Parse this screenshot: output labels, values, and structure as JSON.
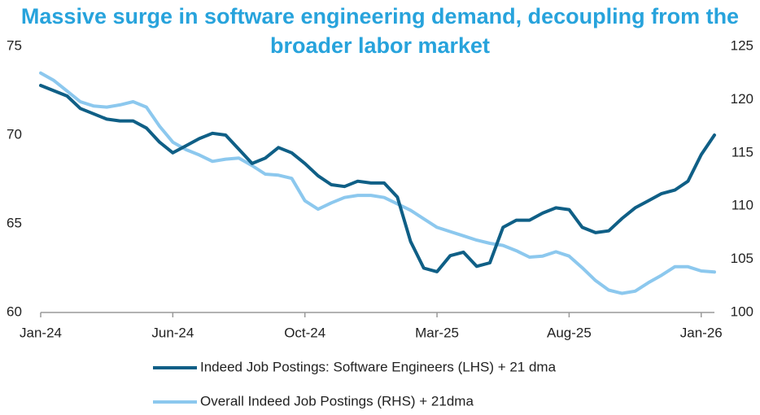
{
  "chart_data": {
    "type": "line",
    "title": "Massive surge in software engineering demand, decoupling from the broader labor market",
    "categories": [
      "Jan-24",
      null,
      null,
      null,
      null,
      null,
      null,
      null,
      null,
      null,
      "Jun-24",
      null,
      null,
      null,
      null,
      null,
      null,
      null,
      null,
      null,
      "Oct-24",
      null,
      null,
      null,
      null,
      null,
      null,
      null,
      null,
      null,
      "Mar-25",
      null,
      null,
      null,
      null,
      null,
      null,
      null,
      null,
      null,
      "Aug-25",
      null,
      null,
      null,
      null,
      null,
      null,
      null,
      null,
      null,
      "Jan-26",
      null
    ],
    "series": [
      {
        "name": "Indeed Job Postings: Software Engineers (LHS) + 21 dma",
        "color": "#0f5f86",
        "axis": "y",
        "values": [
          72.8,
          72.5,
          72.2,
          71.5,
          71.2,
          70.9,
          70.8,
          70.8,
          70.4,
          69.6,
          69.0,
          69.4,
          69.8,
          70.1,
          70.0,
          69.2,
          68.4,
          68.7,
          69.3,
          69.0,
          68.4,
          67.7,
          67.2,
          67.1,
          67.4,
          67.3,
          67.3,
          66.5,
          64.0,
          62.5,
          62.3,
          63.2,
          63.4,
          62.6,
          62.8,
          64.8,
          65.2,
          65.2,
          65.6,
          65.9,
          65.8,
          64.8,
          64.5,
          64.6,
          65.3,
          65.9,
          66.3,
          66.7,
          66.9,
          67.4,
          68.9,
          70.0
        ]
      },
      {
        "name": "Overall Indeed Job Postings (RHS) + 21dma",
        "color": "#8cc8ee",
        "axis": "y2",
        "values": [
          122.5,
          121.8,
          120.8,
          119.8,
          119.4,
          119.3,
          119.5,
          119.8,
          119.3,
          117.5,
          116.0,
          115.3,
          114.8,
          114.2,
          114.4,
          114.5,
          113.8,
          113.0,
          112.9,
          112.6,
          110.5,
          109.7,
          110.3,
          110.8,
          111.0,
          111.0,
          110.8,
          110.2,
          109.6,
          108.8,
          108.0,
          107.6,
          107.2,
          106.8,
          106.5,
          106.3,
          105.8,
          105.2,
          105.3,
          105.7,
          105.3,
          104.2,
          103.0,
          102.1,
          101.8,
          102.0,
          102.8,
          103.5,
          104.3,
          104.3,
          103.9,
          103.8
        ]
      }
    ],
    "ylim": [
      60,
      75
    ],
    "yticks": [
      60,
      65,
      70,
      75
    ],
    "y2lim": [
      100,
      125
    ],
    "y2ticks": [
      100,
      105,
      110,
      115,
      120,
      125
    ],
    "grid": false
  }
}
